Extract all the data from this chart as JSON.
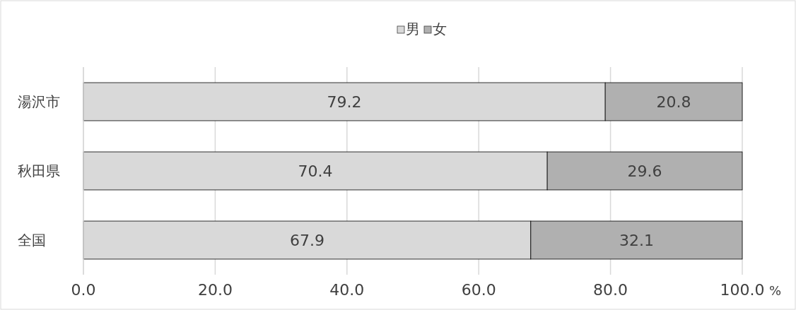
{
  "chart_data": {
    "type": "bar",
    "orientation": "horizontal",
    "stacked": true,
    "categories": [
      "湯沢市",
      "秋田県",
      "全国"
    ],
    "series": [
      {
        "name": "男",
        "color": "#d9d9d9",
        "values": [
          79.2,
          70.4,
          67.9
        ]
      },
      {
        "name": "女",
        "color": "#b0b0b0",
        "values": [
          20.8,
          29.6,
          32.1
        ]
      }
    ],
    "xlim": [
      0,
      100
    ],
    "xticks": [
      {
        "value": 0,
        "label": "0.0"
      },
      {
        "value": 20,
        "label": "20.0"
      },
      {
        "value": 40,
        "label": "40.0"
      },
      {
        "value": 60,
        "label": "60.0"
      },
      {
        "value": 80,
        "label": "80.0"
      },
      {
        "value": 100,
        "label": "100.0"
      }
    ],
    "xlabel": "%",
    "grid": "x",
    "legend": "top",
    "data_labels": true
  }
}
